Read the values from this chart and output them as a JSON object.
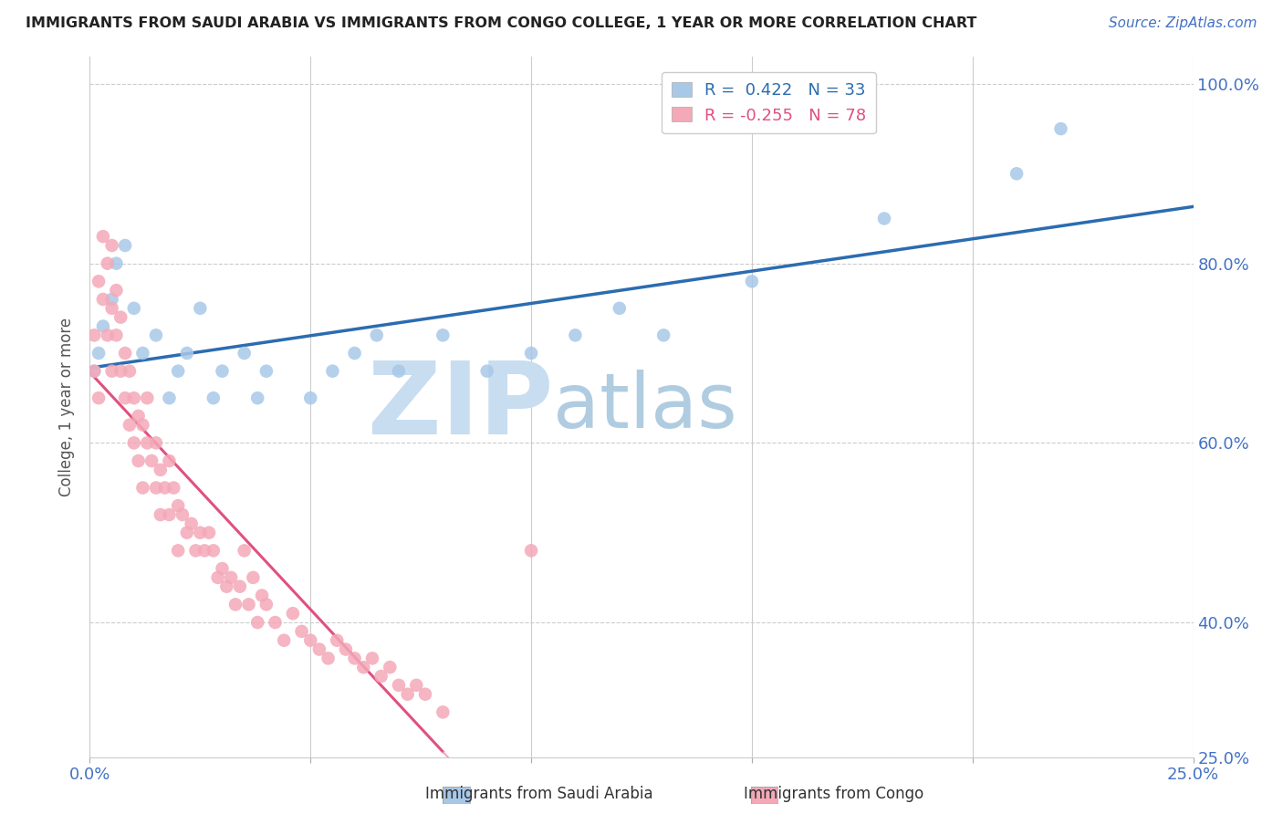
{
  "title": "IMMIGRANTS FROM SAUDI ARABIA VS IMMIGRANTS FROM CONGO COLLEGE, 1 YEAR OR MORE CORRELATION CHART",
  "source_text": "Source: ZipAtlas.com",
  "ylabel": "College, 1 year or more",
  "xlim": [
    0.0,
    0.25
  ],
  "ylim": [
    0.25,
    1.03
  ],
  "xtick_positions": [
    0.0,
    0.05,
    0.1,
    0.15,
    0.2,
    0.25
  ],
  "xtick_labels": [
    "0.0%",
    "",
    "",
    "",
    "",
    "25.0%"
  ],
  "ytick_positions": [
    0.25,
    0.4,
    0.6,
    0.8,
    1.0
  ],
  "ytick_labels": [
    "25.0%",
    "40.0%",
    "60.0%",
    "80.0%",
    "100.0%"
  ],
  "R_saudi": 0.422,
  "N_saudi": 33,
  "R_congo": -0.255,
  "N_congo": 78,
  "saudi_color": "#a8c8e8",
  "congo_color": "#f4a8b8",
  "saudi_line_color": "#2b6cb0",
  "congo_line_color": "#e05080",
  "watermark_zip": "ZIP",
  "watermark_atlas": "atlas",
  "watermark_color_zip": "#c8ddf0",
  "watermark_color_atlas": "#b0cce0",
  "saudi_x": [
    0.001,
    0.002,
    0.003,
    0.005,
    0.006,
    0.008,
    0.01,
    0.012,
    0.015,
    0.018,
    0.02,
    0.022,
    0.025,
    0.028,
    0.03,
    0.035,
    0.038,
    0.04,
    0.05,
    0.055,
    0.06,
    0.065,
    0.07,
    0.08,
    0.09,
    0.1,
    0.11,
    0.12,
    0.13,
    0.15,
    0.18,
    0.21,
    0.22
  ],
  "saudi_y": [
    0.68,
    0.7,
    0.73,
    0.76,
    0.8,
    0.82,
    0.75,
    0.7,
    0.72,
    0.65,
    0.68,
    0.7,
    0.75,
    0.65,
    0.68,
    0.7,
    0.65,
    0.68,
    0.65,
    0.68,
    0.7,
    0.72,
    0.68,
    0.72,
    0.68,
    0.7,
    0.72,
    0.75,
    0.72,
    0.78,
    0.85,
    0.9,
    0.95
  ],
  "congo_x": [
    0.001,
    0.001,
    0.002,
    0.002,
    0.003,
    0.003,
    0.004,
    0.004,
    0.005,
    0.005,
    0.005,
    0.006,
    0.006,
    0.007,
    0.007,
    0.008,
    0.008,
    0.009,
    0.009,
    0.01,
    0.01,
    0.011,
    0.011,
    0.012,
    0.012,
    0.013,
    0.013,
    0.014,
    0.015,
    0.015,
    0.016,
    0.016,
    0.017,
    0.018,
    0.018,
    0.019,
    0.02,
    0.02,
    0.021,
    0.022,
    0.023,
    0.024,
    0.025,
    0.026,
    0.027,
    0.028,
    0.029,
    0.03,
    0.031,
    0.032,
    0.033,
    0.034,
    0.035,
    0.036,
    0.037,
    0.038,
    0.039,
    0.04,
    0.042,
    0.044,
    0.046,
    0.048,
    0.05,
    0.052,
    0.054,
    0.056,
    0.058,
    0.06,
    0.062,
    0.064,
    0.066,
    0.068,
    0.07,
    0.072,
    0.074,
    0.076,
    0.08,
    0.1
  ],
  "congo_y": [
    0.72,
    0.68,
    0.78,
    0.65,
    0.83,
    0.76,
    0.8,
    0.72,
    0.82,
    0.75,
    0.68,
    0.77,
    0.72,
    0.74,
    0.68,
    0.7,
    0.65,
    0.68,
    0.62,
    0.65,
    0.6,
    0.63,
    0.58,
    0.62,
    0.55,
    0.6,
    0.65,
    0.58,
    0.6,
    0.55,
    0.57,
    0.52,
    0.55,
    0.58,
    0.52,
    0.55,
    0.53,
    0.48,
    0.52,
    0.5,
    0.51,
    0.48,
    0.5,
    0.48,
    0.5,
    0.48,
    0.45,
    0.46,
    0.44,
    0.45,
    0.42,
    0.44,
    0.48,
    0.42,
    0.45,
    0.4,
    0.43,
    0.42,
    0.4,
    0.38,
    0.41,
    0.39,
    0.38,
    0.37,
    0.36,
    0.38,
    0.37,
    0.36,
    0.35,
    0.36,
    0.34,
    0.35,
    0.33,
    0.32,
    0.33,
    0.32,
    0.3,
    0.48
  ],
  "congo_line_solid_end": 0.08,
  "congo_line_dashed_end": 0.2,
  "saudi_line_start": 0.0,
  "saudi_line_end": 0.25
}
